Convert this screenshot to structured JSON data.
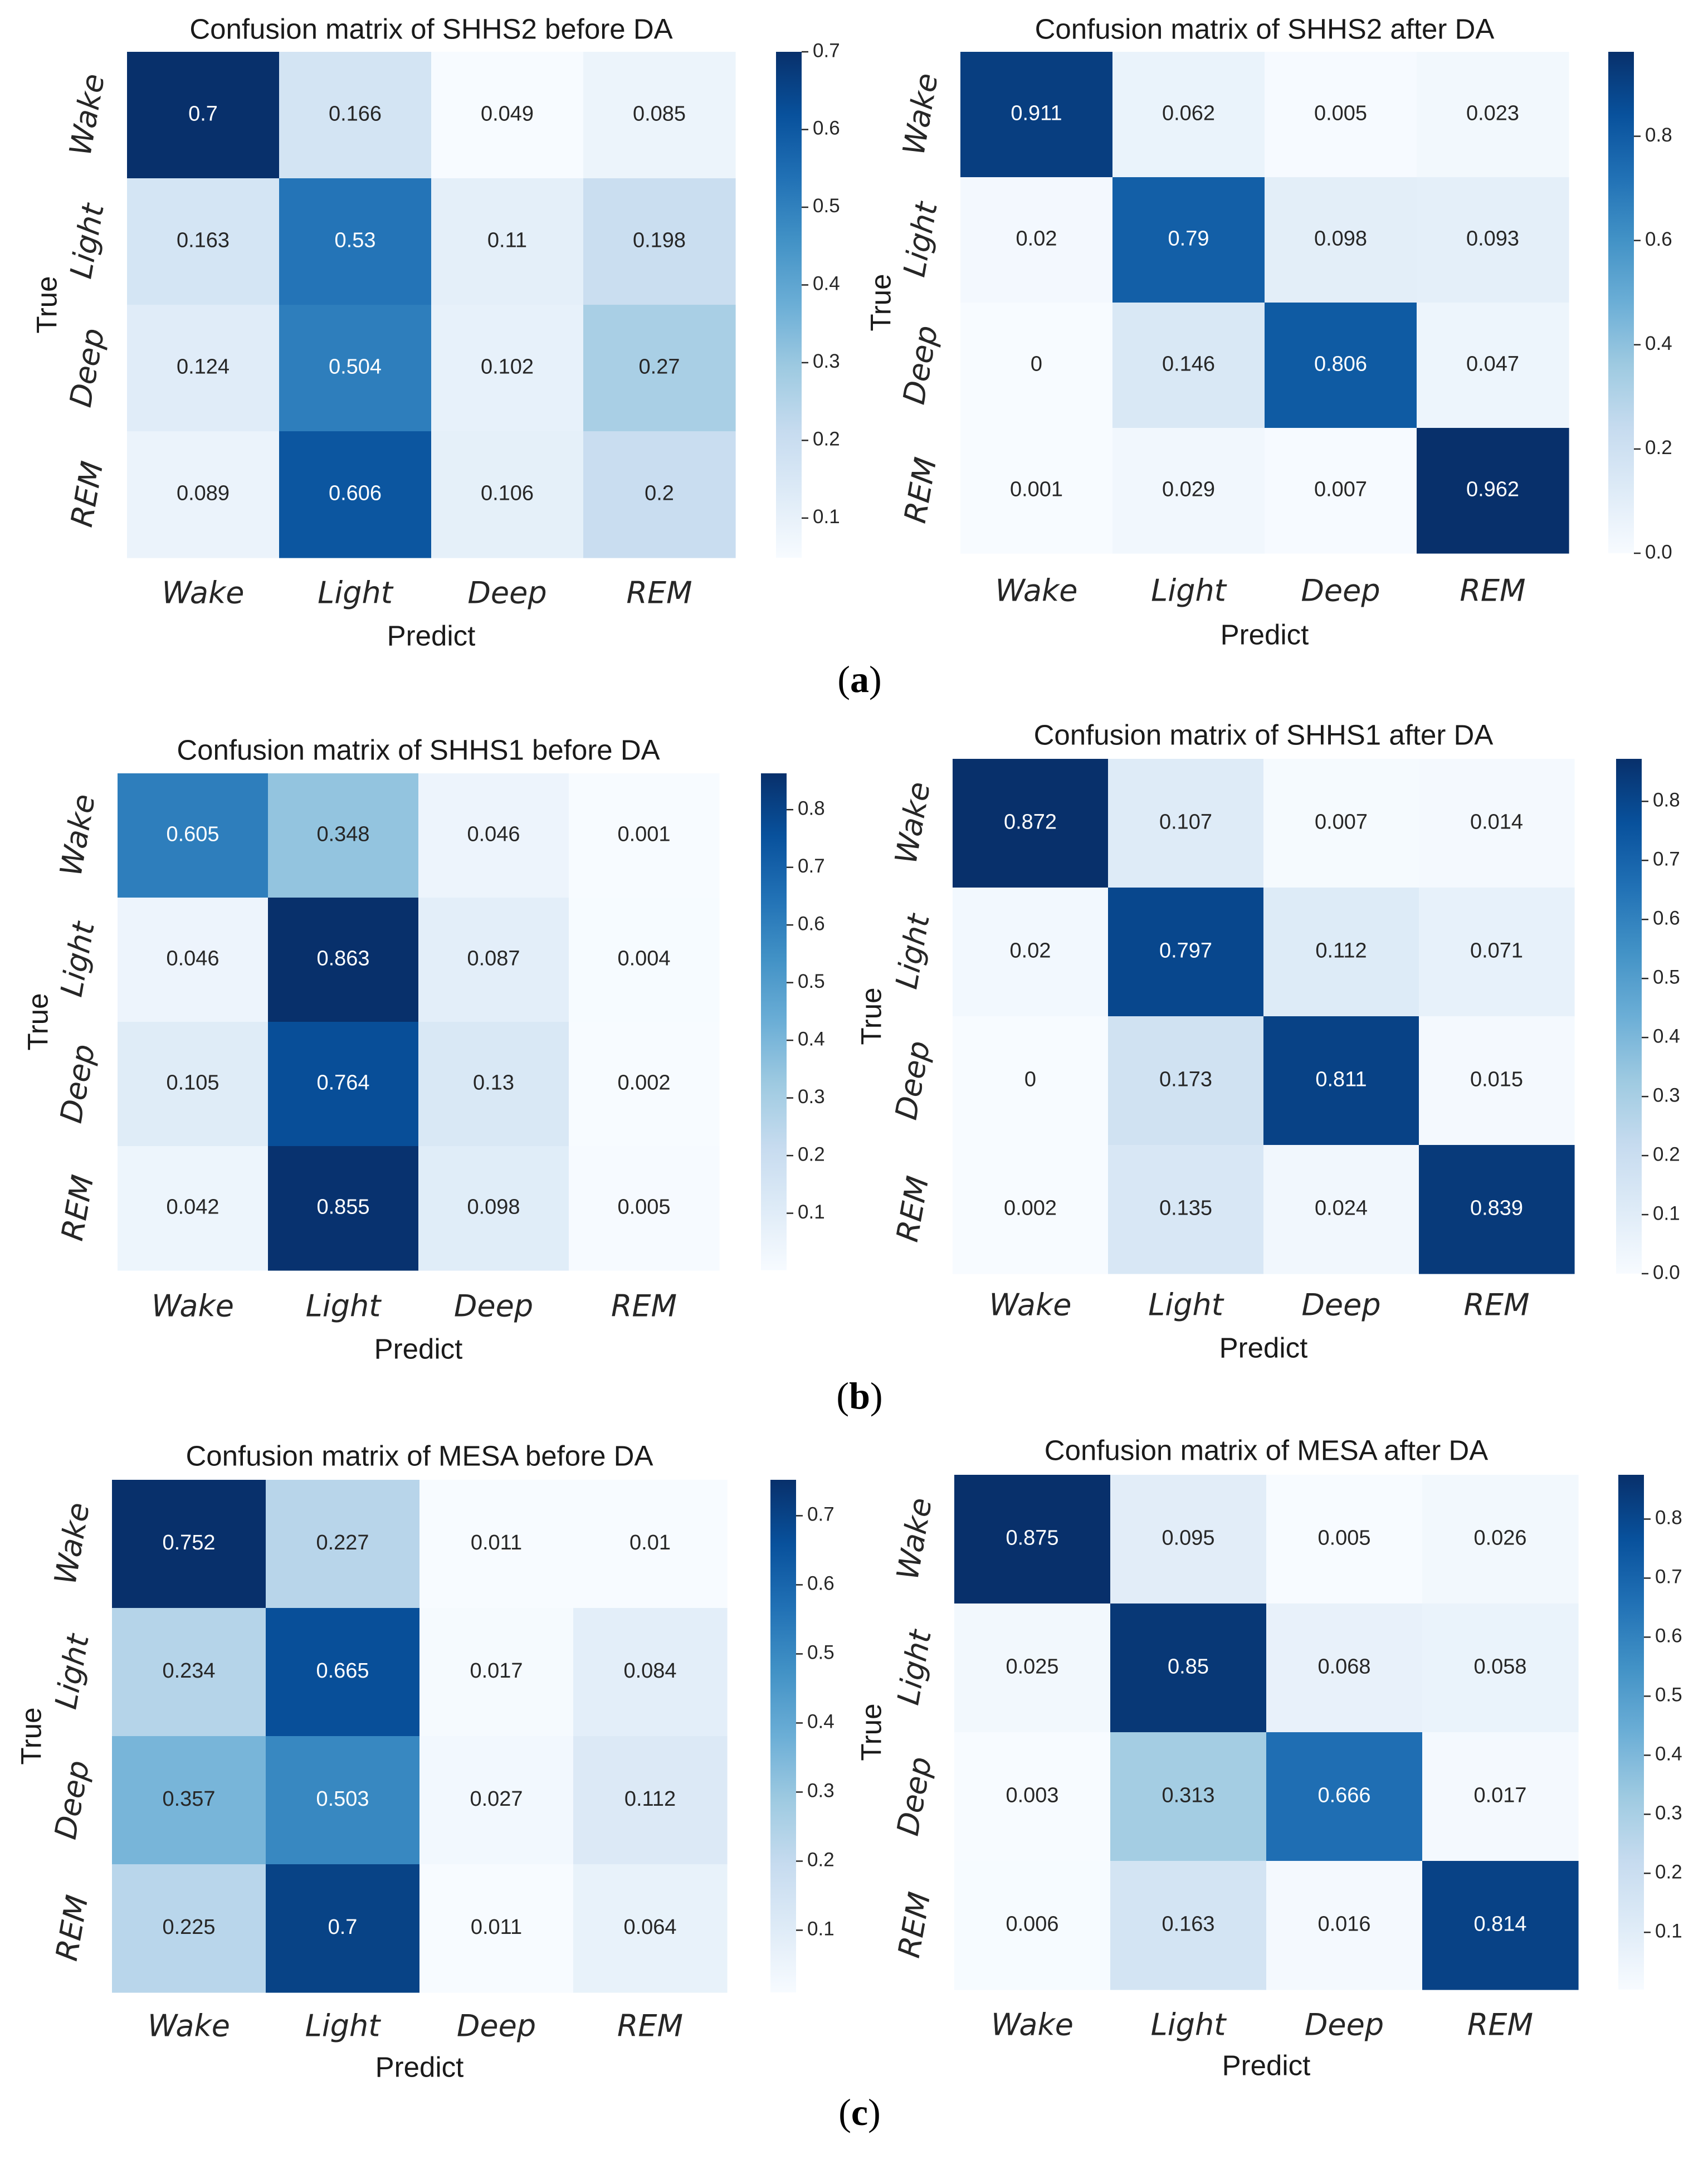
{
  "chart_data": [
    {
      "type": "heatmap",
      "title": "Confusion matrix of SHHS2 before DA",
      "xlabel": "Predict",
      "ylabel": "True",
      "x_categories": [
        "Wake",
        "Light",
        "Deep",
        "REM"
      ],
      "y_categories": [
        "Wake",
        "Light",
        "Deep",
        "REM"
      ],
      "values": [
        [
          0.7,
          0.166,
          0.049,
          0.085
        ],
        [
          0.163,
          0.53,
          0.11,
          0.198
        ],
        [
          0.124,
          0.504,
          0.102,
          0.27
        ],
        [
          0.089,
          0.606,
          0.106,
          0.2
        ]
      ],
      "value_labels": [
        [
          "0.7",
          "0.166",
          "0.049",
          "0.085"
        ],
        [
          "0.163",
          "0.53",
          "0.11",
          "0.198"
        ],
        [
          "0.124",
          "0.504",
          "0.102",
          "0.27"
        ],
        [
          "0.089",
          "0.606",
          "0.106",
          "0.2"
        ]
      ],
      "colorbar": {
        "range": [
          0.049,
          0.7
        ],
        "ticks": [
          0.1,
          0.2,
          0.3,
          0.4,
          0.5,
          0.6,
          0.7
        ],
        "tick_labels": [
          "0.1",
          "0.2",
          "0.3",
          "0.4",
          "0.5",
          "0.6",
          "0.7"
        ]
      },
      "colormap": "Blues"
    },
    {
      "type": "heatmap",
      "title": "Confusion matrix of SHHS2 after DA",
      "xlabel": "Predict",
      "ylabel": "True",
      "x_categories": [
        "Wake",
        "Light",
        "Deep",
        "REM"
      ],
      "y_categories": [
        "Wake",
        "Light",
        "Deep",
        "REM"
      ],
      "values": [
        [
          0.911,
          0.062,
          0.005,
          0.023
        ],
        [
          0.02,
          0.79,
          0.098,
          0.093
        ],
        [
          0,
          0.146,
          0.806,
          0.047
        ],
        [
          0.001,
          0.029,
          0.007,
          0.962
        ]
      ],
      "value_labels": [
        [
          "0.911",
          "0.062",
          "0.005",
          "0.023"
        ],
        [
          "0.02",
          "0.79",
          "0.098",
          "0.093"
        ],
        [
          "0",
          "0.146",
          "0.806",
          "0.047"
        ],
        [
          "0.001",
          "0.029",
          "0.007",
          "0.962"
        ]
      ],
      "colorbar": {
        "range": [
          0.0,
          0.962
        ],
        "ticks": [
          0.0,
          0.2,
          0.4,
          0.6,
          0.8
        ],
        "tick_labels": [
          "0.0",
          "0.2",
          "0.4",
          "0.6",
          "0.8"
        ]
      },
      "colormap": "Blues"
    },
    {
      "type": "heatmap",
      "title": "Confusion matrix of SHHS1 before DA",
      "xlabel": "Predict",
      "ylabel": "True",
      "x_categories": [
        "Wake",
        "Light",
        "Deep",
        "REM"
      ],
      "y_categories": [
        "Wake",
        "Light",
        "Deep",
        "REM"
      ],
      "values": [
        [
          0.605,
          0.348,
          0.046,
          0.001
        ],
        [
          0.046,
          0.863,
          0.087,
          0.004
        ],
        [
          0.105,
          0.764,
          0.13,
          0.002
        ],
        [
          0.042,
          0.855,
          0.098,
          0.005
        ]
      ],
      "value_labels": [
        [
          "0.605",
          "0.348",
          "0.046",
          "0.001"
        ],
        [
          "0.046",
          "0.863",
          "0.087",
          "0.004"
        ],
        [
          "0.105",
          "0.764",
          "0.13",
          "0.002"
        ],
        [
          "0.042",
          "0.855",
          "0.098",
          "0.005"
        ]
      ],
      "colorbar": {
        "range": [
          0.001,
          0.863
        ],
        "ticks": [
          0.1,
          0.2,
          0.3,
          0.4,
          0.5,
          0.6,
          0.7,
          0.8
        ],
        "tick_labels": [
          "0.1",
          "0.2",
          "0.3",
          "0.4",
          "0.5",
          "0.6",
          "0.7",
          "0.8"
        ]
      },
      "colormap": "Blues"
    },
    {
      "type": "heatmap",
      "title": "Confusion matrix of SHHS1 after DA",
      "xlabel": "Predict",
      "ylabel": "True",
      "x_categories": [
        "Wake",
        "Light",
        "Deep",
        "REM"
      ],
      "y_categories": [
        "Wake",
        "Light",
        "Deep",
        "REM"
      ],
      "values": [
        [
          0.872,
          0.107,
          0.007,
          0.014
        ],
        [
          0.02,
          0.797,
          0.112,
          0.071
        ],
        [
          0,
          0.173,
          0.811,
          0.015
        ],
        [
          0.002,
          0.135,
          0.024,
          0.839
        ]
      ],
      "value_labels": [
        [
          "0.872",
          "0.107",
          "0.007",
          "0.014"
        ],
        [
          "0.02",
          "0.797",
          "0.112",
          "0.071"
        ],
        [
          "0",
          "0.173",
          "0.811",
          "0.015"
        ],
        [
          "0.002",
          "0.135",
          "0.024",
          "0.839"
        ]
      ],
      "colorbar": {
        "range": [
          0.0,
          0.872
        ],
        "ticks": [
          0.0,
          0.1,
          0.2,
          0.3,
          0.4,
          0.5,
          0.6,
          0.7,
          0.8
        ],
        "tick_labels": [
          "0.0",
          "0.1",
          "0.2",
          "0.3",
          "0.4",
          "0.5",
          "0.6",
          "0.7",
          "0.8"
        ]
      },
      "colormap": "Blues"
    },
    {
      "type": "heatmap",
      "title": "Confusion matrix of MESA before DA",
      "xlabel": "Predict",
      "ylabel": "True",
      "x_categories": [
        "Wake",
        "Light",
        "Deep",
        "REM"
      ],
      "y_categories": [
        "Wake",
        "Light",
        "Deep",
        "REM"
      ],
      "values": [
        [
          0.752,
          0.227,
          0.011,
          0.01
        ],
        [
          0.234,
          0.665,
          0.017,
          0.084
        ],
        [
          0.357,
          0.503,
          0.027,
          0.112
        ],
        [
          0.225,
          0.7,
          0.011,
          0.064
        ]
      ],
      "value_labels": [
        [
          "0.752",
          "0.227",
          "0.011",
          "0.01"
        ],
        [
          "0.234",
          "0.665",
          "0.017",
          "0.084"
        ],
        [
          "0.357",
          "0.503",
          "0.027",
          "0.112"
        ],
        [
          "0.225",
          "0.7",
          "0.011",
          "0.064"
        ]
      ],
      "colorbar": {
        "range": [
          0.01,
          0.752
        ],
        "ticks": [
          0.1,
          0.2,
          0.3,
          0.4,
          0.5,
          0.6,
          0.7
        ],
        "tick_labels": [
          "0.1",
          "0.2",
          "0.3",
          "0.4",
          "0.5",
          "0.6",
          "0.7"
        ]
      },
      "colormap": "Blues"
    },
    {
      "type": "heatmap",
      "title": "Confusion matrix of MESA after DA",
      "xlabel": "Predict",
      "ylabel": "True",
      "x_categories": [
        "Wake",
        "Light",
        "Deep",
        "REM"
      ],
      "y_categories": [
        "Wake",
        "Light",
        "Deep",
        "REM"
      ],
      "values": [
        [
          0.875,
          0.095,
          0.005,
          0.026
        ],
        [
          0.025,
          0.85,
          0.068,
          0.058
        ],
        [
          0.003,
          0.313,
          0.666,
          0.017
        ],
        [
          0.006,
          0.163,
          0.016,
          0.814
        ]
      ],
      "value_labels": [
        [
          "0.875",
          "0.095",
          "0.005",
          "0.026"
        ],
        [
          "0.025",
          "0.85",
          "0.068",
          "0.058"
        ],
        [
          "0.003",
          "0.313",
          "0.666",
          "0.017"
        ],
        [
          "0.006",
          "0.163",
          "0.016",
          "0.814"
        ]
      ],
      "colorbar": {
        "range": [
          0.003,
          0.875
        ],
        "ticks": [
          0.1,
          0.2,
          0.3,
          0.4,
          0.5,
          0.6,
          0.7,
          0.8
        ],
        "tick_labels": [
          "0.1",
          "0.2",
          "0.3",
          "0.4",
          "0.5",
          "0.6",
          "0.7",
          "0.8"
        ]
      },
      "colormap": "Blues"
    }
  ],
  "subfigure_labels": [
    "a",
    "b",
    "c"
  ]
}
